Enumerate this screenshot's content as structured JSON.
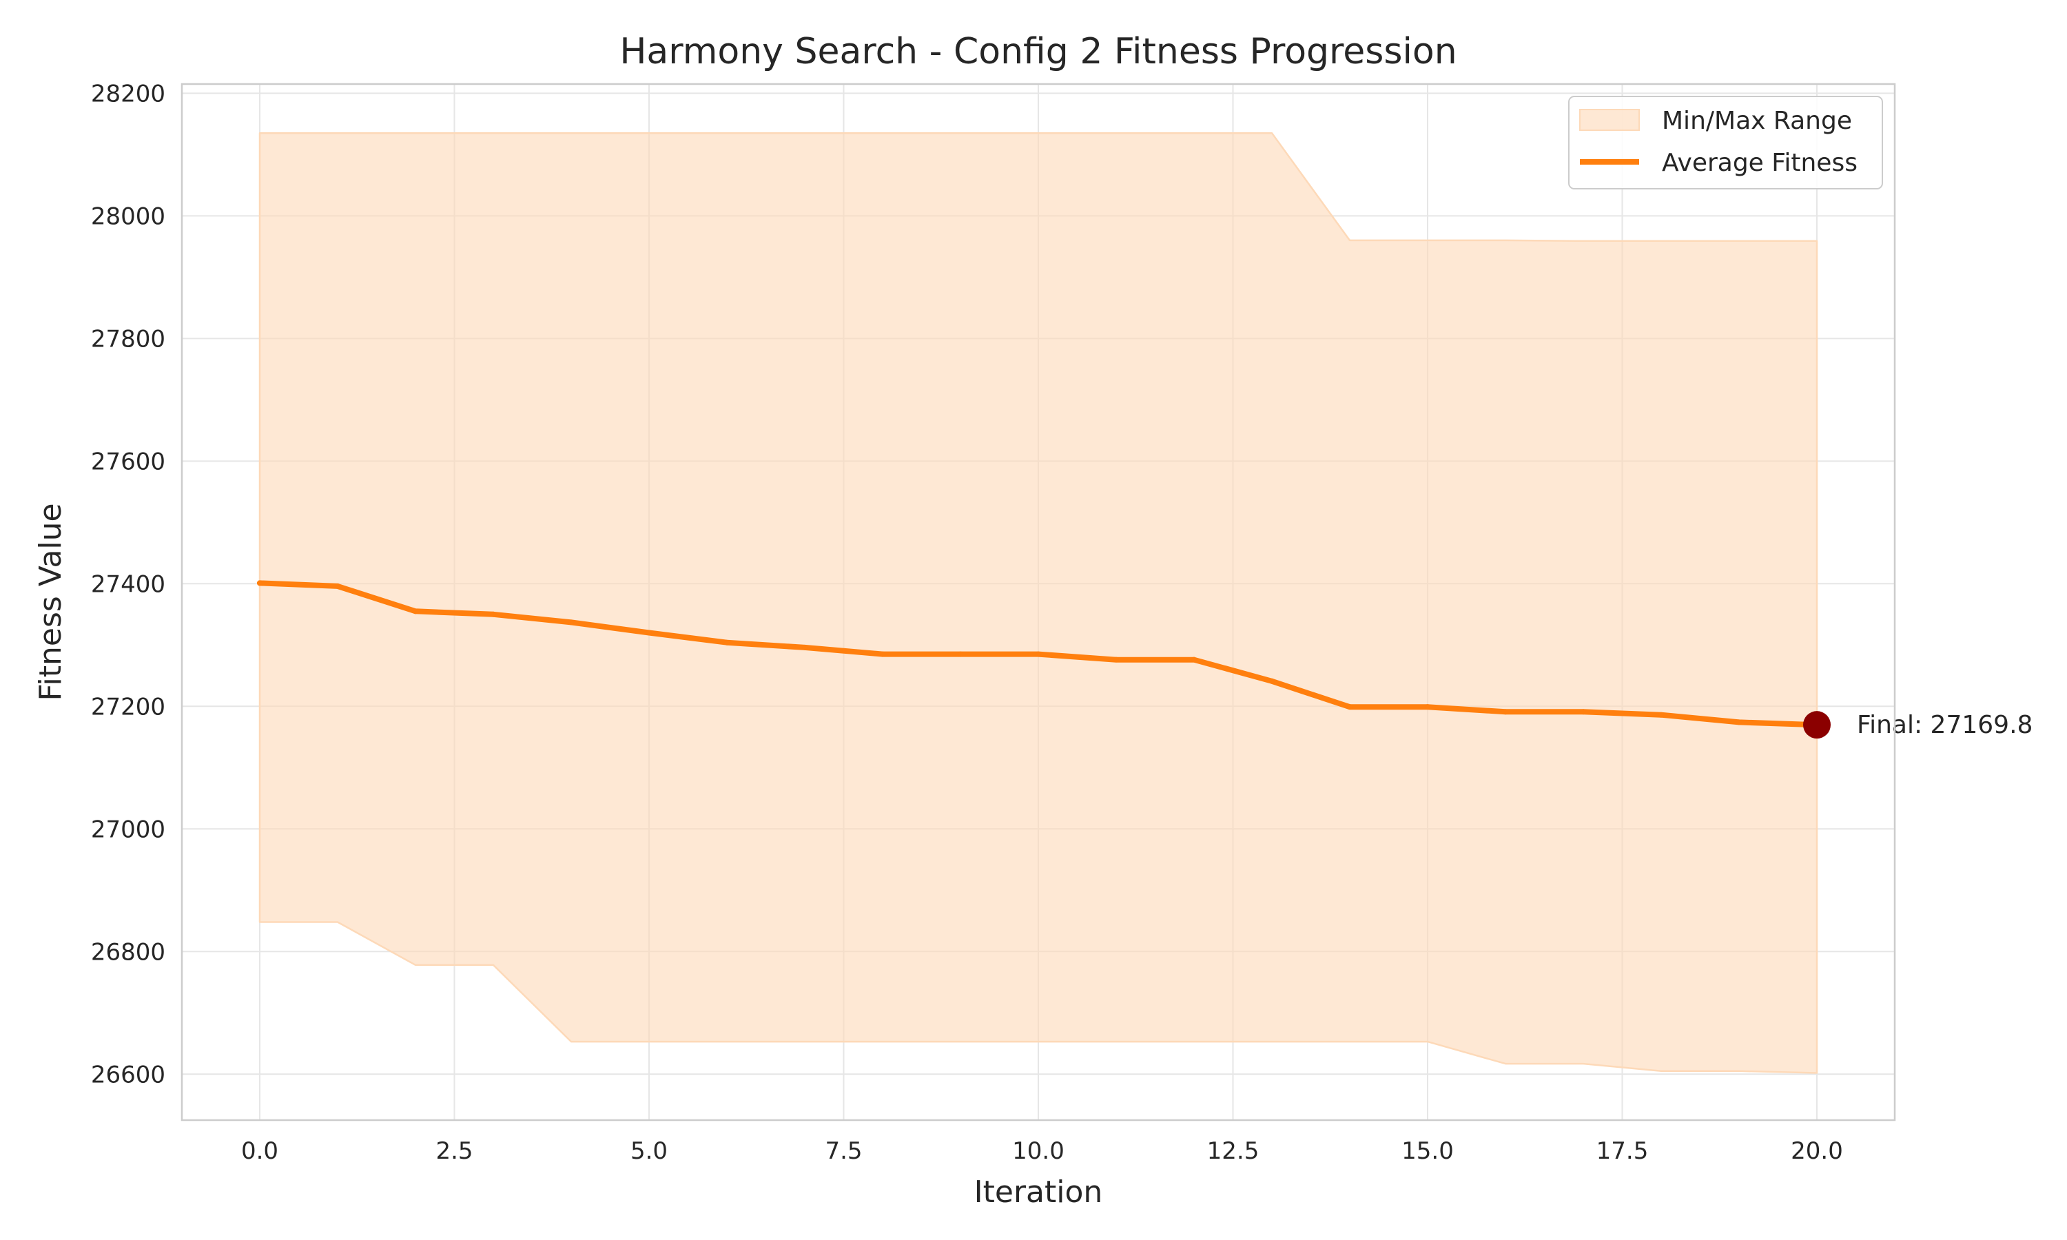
{
  "chart_data": {
    "type": "line",
    "title": "Harmony Search - Config 2 Fitness Progression",
    "xlabel": "Iteration",
    "ylabel": "Fitness Value",
    "xlim": [
      -1,
      21
    ],
    "ylim": [
      26525,
      28215
    ],
    "xticks": [
      0.0,
      2.5,
      5.0,
      7.5,
      10.0,
      12.5,
      15.0,
      17.5,
      20.0
    ],
    "xtick_labels": [
      "0.0",
      "2.5",
      "5.0",
      "7.5",
      "10.0",
      "12.5",
      "15.0",
      "17.5",
      "20.0"
    ],
    "yticks": [
      26600,
      26800,
      27000,
      27200,
      27400,
      27600,
      27800,
      28000,
      28200
    ],
    "ytick_labels": [
      "26600",
      "26800",
      "27000",
      "27200",
      "27400",
      "27600",
      "27800",
      "28000",
      "28200"
    ],
    "grid": true,
    "legend_position": "top-right",
    "x": [
      0,
      1,
      2,
      3,
      4,
      5,
      6,
      7,
      8,
      9,
      10,
      11,
      12,
      13,
      14,
      15,
      16,
      17,
      18,
      19,
      20
    ],
    "series": [
      {
        "name": "Average Fitness",
        "color": "#ff7f0e",
        "values": [
          27401,
          27396,
          27355,
          27350,
          27337,
          27320,
          27304,
          27296,
          27285,
          27285,
          27285,
          27276,
          27276,
          27241,
          27199,
          27199,
          27191,
          27191,
          27186,
          27174,
          27169.8
        ]
      }
    ],
    "range": {
      "name": "Min/Max Range",
      "color": "#fdd9b8",
      "min": [
        26848,
        26848,
        26778,
        26778,
        26653,
        26653,
        26653,
        26653,
        26653,
        26653,
        26653,
        26653,
        26653,
        26653,
        26653,
        26653,
        26617,
        26617,
        26605,
        26605,
        26602
      ],
      "max": [
        28135,
        28135,
        28135,
        28135,
        28135,
        28135,
        28135,
        28135,
        28135,
        28135,
        28135,
        28135,
        28135,
        28135,
        27960,
        27960,
        27960,
        27959,
        27959,
        27959,
        27959
      ]
    },
    "final_point": {
      "x": 20,
      "y": 27169.8,
      "color": "#8b0000",
      "label": "Final: 27169.8"
    }
  }
}
